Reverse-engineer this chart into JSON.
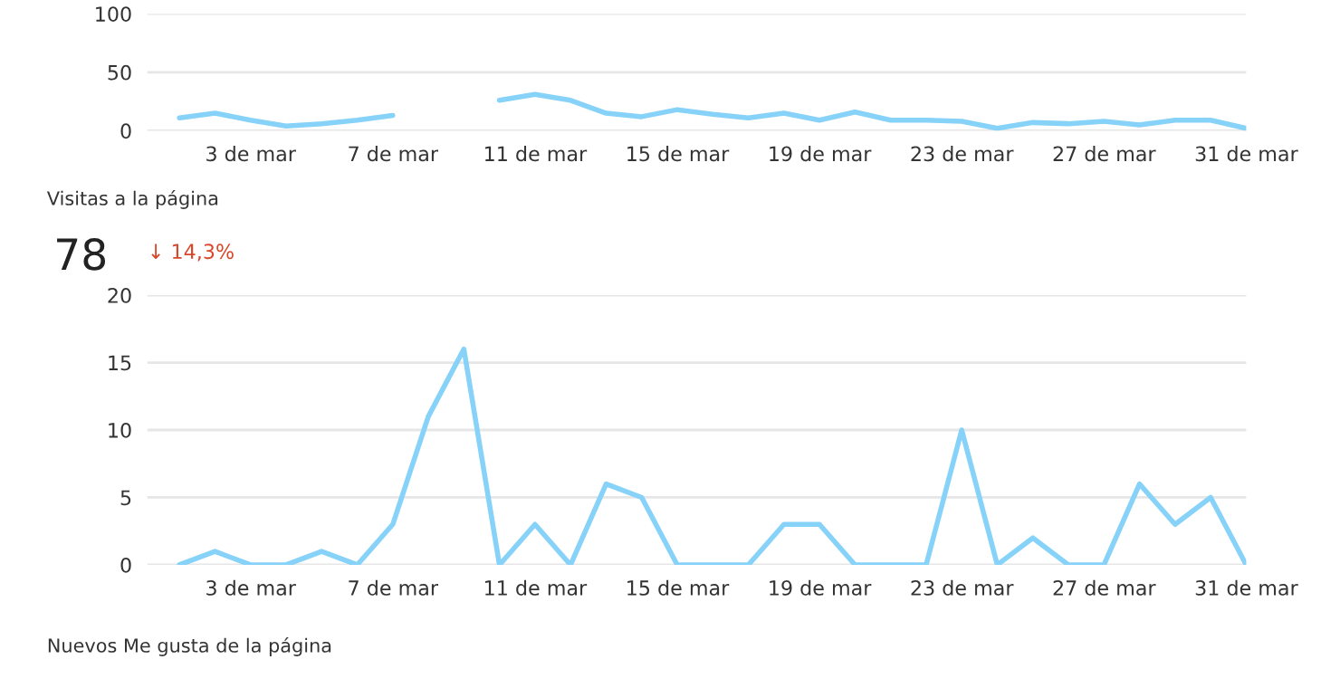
{
  "chart_data": [
    {
      "type": "line",
      "categories": [
        null,
        null,
        "3 de mar",
        null,
        null,
        null,
        "7 de mar",
        null,
        null,
        null,
        "11 de mar",
        null,
        null,
        null,
        "15 de mar",
        null,
        null,
        null,
        "19 de mar",
        null,
        null,
        null,
        "23 de mar",
        null,
        null,
        null,
        "27 de mar",
        null,
        null,
        null,
        "31 de mar"
      ],
      "series": [
        {
          "color": "#86d2f8",
          "values": [
            11,
            15,
            9,
            4,
            6,
            9,
            13,
            null,
            null,
            26,
            31,
            26,
            15,
            12,
            18,
            14,
            11,
            15,
            9,
            16,
            9,
            9,
            8,
            2,
            7,
            6,
            8,
            5,
            9,
            9,
            2
          ]
        }
      ],
      "ylim": [
        0,
        100
      ],
      "yticks": [
        0,
        50,
        100
      ],
      "grid": "y",
      "legend": false
    },
    {
      "type": "line",
      "title": "Visitas a la página",
      "annotations": [
        "78",
        "↓ 14,3%",
        "Nuevos Me gusta de la página"
      ],
      "categories": [
        null,
        null,
        "3 de mar",
        null,
        null,
        null,
        "7 de mar",
        null,
        null,
        null,
        "11 de mar",
        null,
        null,
        null,
        "15 de mar",
        null,
        null,
        null,
        "19 de mar",
        null,
        null,
        null,
        "23 de mar",
        null,
        null,
        null,
        "27 de mar",
        null,
        null,
        null,
        "31 de mar"
      ],
      "series": [
        {
          "color": "#86d2f8",
          "values": [
            0,
            1,
            0,
            0,
            1,
            0,
            3,
            11,
            16,
            0,
            3,
            0,
            6,
            5,
            0,
            0,
            0,
            3,
            3,
            0,
            0,
            0,
            10,
            0,
            2,
            0,
            0,
            6,
            3,
            5,
            0
          ]
        }
      ],
      "ylim": [
        0,
        20
      ],
      "yticks": [
        0,
        5,
        10,
        15,
        20
      ],
      "grid": "y",
      "legend": false
    }
  ]
}
